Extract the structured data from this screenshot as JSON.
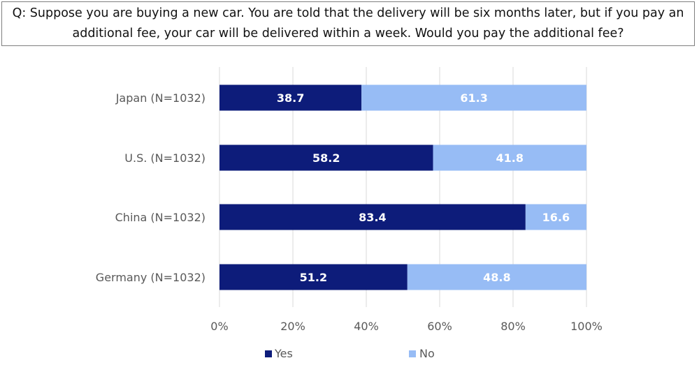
{
  "question": "Q: Suppose you are buying a new car. You are told that the delivery will be six months later, but if you pay an additional fee, your car will be delivered within a week. Would you pay the additional fee?",
  "chart_data": {
    "type": "bar",
    "orientation": "horizontal",
    "stacked": true,
    "categories": [
      "Japan (N=1032)",
      "U.S. (N=1032)",
      "China (N=1032)",
      "Germany (N=1032)"
    ],
    "series": [
      {
        "name": "Yes",
        "values": [
          38.7,
          58.2,
          83.4,
          51.2
        ],
        "color": "#0d1c7a",
        "label_color": "#ffffff"
      },
      {
        "name": "No",
        "values": [
          61.3,
          41.8,
          16.6,
          48.8
        ],
        "color": "#97bcf5",
        "label_color": "#ffffff"
      }
    ],
    "xlim": [
      0,
      100
    ],
    "xticks": [
      "0%",
      "20%",
      "40%",
      "60%",
      "80%",
      "100%"
    ],
    "xtick_values": [
      0,
      20,
      40,
      60,
      80,
      100
    ],
    "grid": true,
    "legend_position": "bottom"
  }
}
